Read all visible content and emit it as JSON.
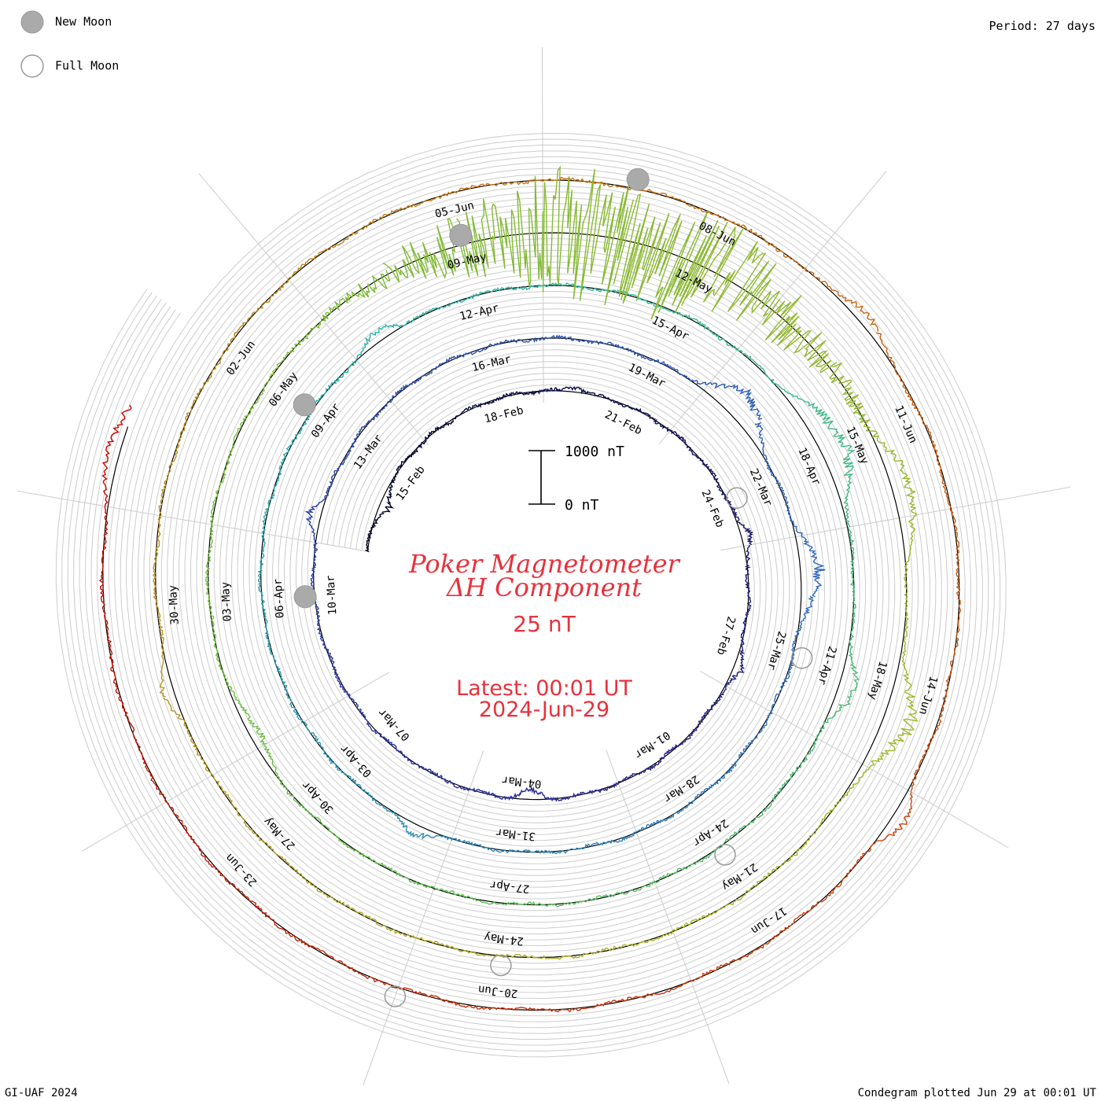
{
  "header": {
    "legend_new_moon": "New Moon",
    "legend_full_moon": "Full Moon",
    "period": "Period: 27 days"
  },
  "center": {
    "title_line1": "Poker Magnetometer",
    "title_line2": "ΔH Component",
    "value": "25 nT",
    "latest_line1": "Latest: 00:01 UT",
    "latest_line2": "2024-Jun-29",
    "scale_top": "1000 nT",
    "scale_bottom": "0 nT"
  },
  "footer": {
    "credit": "GI-UAF 2024",
    "plotted": "Condegram plotted Jun 29 at 00:01 UT"
  },
  "colors": {
    "title": "#e8313c",
    "grid": "#c8c8c8",
    "reference": "#000000",
    "new_moon": "#aaaaaa",
    "full_moon": "#aaaaaa"
  },
  "chart_data": {
    "type": "line",
    "subtype": "condegram-spiral",
    "period_days": 27,
    "start_date": "2024-02-13",
    "end_date": "2024-06-29",
    "date_labels": [
      {
        "text": "15-Feb",
        "day": 2
      },
      {
        "text": "18-Feb",
        "day": 5
      },
      {
        "text": "21-Feb",
        "day": 8
      },
      {
        "text": "24-Feb",
        "day": 11
      },
      {
        "text": "27-Feb",
        "day": 14
      },
      {
        "text": "01-Mar",
        "day": 17
      },
      {
        "text": "04-Mar",
        "day": 20
      },
      {
        "text": "07-Mar",
        "day": 23
      },
      {
        "text": "10-Mar",
        "day": 26
      },
      {
        "text": "13-Mar",
        "day": 29
      },
      {
        "text": "16-Mar",
        "day": 32
      },
      {
        "text": "19-Mar",
        "day": 35
      },
      {
        "text": "22-Mar",
        "day": 38
      },
      {
        "text": "25-Mar",
        "day": 41
      },
      {
        "text": "28-Mar",
        "day": 44
      },
      {
        "text": "31-Mar",
        "day": 47
      },
      {
        "text": "03-Apr",
        "day": 50
      },
      {
        "text": "06-Apr",
        "day": 53
      },
      {
        "text": "09-Apr",
        "day": 56
      },
      {
        "text": "12-Apr",
        "day": 59
      },
      {
        "text": "15-Apr",
        "day": 62
      },
      {
        "text": "18-Apr",
        "day": 65
      },
      {
        "text": "21-Apr",
        "day": 68
      },
      {
        "text": "24-Apr",
        "day": 71
      },
      {
        "text": "27-Apr",
        "day": 74
      },
      {
        "text": "30-Apr",
        "day": 77
      },
      {
        "text": "03-May",
        "day": 80
      },
      {
        "text": "06-May",
        "day": 83
      },
      {
        "text": "09-May",
        "day": 86
      },
      {
        "text": "12-May",
        "day": 89
      },
      {
        "text": "15-May",
        "day": 92
      },
      {
        "text": "18-May",
        "day": 95
      },
      {
        "text": "21-May",
        "day": 98
      },
      {
        "text": "24-May",
        "day": 101
      },
      {
        "text": "27-May",
        "day": 104
      },
      {
        "text": "30-May",
        "day": 107
      },
      {
        "text": "02-Jun",
        "day": 110
      },
      {
        "text": "05-Jun",
        "day": 113
      },
      {
        "text": "08-Jun",
        "day": 116
      },
      {
        "text": "11-Jun",
        "day": 119
      },
      {
        "text": "14-Jun",
        "day": 122
      },
      {
        "text": "17-Jun",
        "day": 125
      },
      {
        "text": "20-Jun",
        "day": 128
      },
      {
        "text": "23-Jun",
        "day": 131
      }
    ],
    "new_moons": [
      26,
      56,
      86,
      115
    ],
    "full_moons": [
      11,
      41,
      71,
      101,
      129
    ],
    "disturbances": [
      {
        "day": 1.2,
        "peak_nT": -250,
        "width": 0.2
      },
      {
        "day": 6.7,
        "peak_nT": 150,
        "width": 0.15
      },
      {
        "day": 11.8,
        "peak_nT": 220,
        "width": 0.2
      },
      {
        "day": 14.6,
        "peak_nT": 200,
        "width": 0.2
      },
      {
        "day": 19.8,
        "peak_nT": -200,
        "width": 0.2
      },
      {
        "day": 27.5,
        "peak_nT": 250,
        "width": 0.2
      },
      {
        "day": 36.6,
        "peak_nT": 600,
        "width": 0.4
      },
      {
        "day": 39.6,
        "peak_nT": 450,
        "width": 0.4
      },
      {
        "day": 48.6,
        "peak_nT": 250,
        "width": 0.2
      },
      {
        "day": 57.5,
        "peak_nT": 250,
        "width": 0.2
      },
      {
        "day": 64.8,
        "peak_nT": 600,
        "width": 0.5
      },
      {
        "day": 68.2,
        "peak_nT": 350,
        "width": 0.3
      },
      {
        "day": 78.2,
        "peak_nT": -250,
        "width": 0.3
      },
      {
        "day": 88.0,
        "peak_nT": 1400,
        "width": 1.6
      },
      {
        "day": 92.7,
        "peak_nT": 450,
        "width": 0.4
      },
      {
        "day": 95.4,
        "peak_nT": 600,
        "width": 0.4
      },
      {
        "day": 106.0,
        "peak_nT": 250,
        "width": 0.2
      },
      {
        "day": 117.8,
        "peak_nT": 300,
        "width": 0.2
      },
      {
        "day": 123.3,
        "peak_nT": 300,
        "width": 0.2
      },
      {
        "day": 135.6,
        "peak_nT": 300,
        "width": 0.3
      }
    ]
  }
}
